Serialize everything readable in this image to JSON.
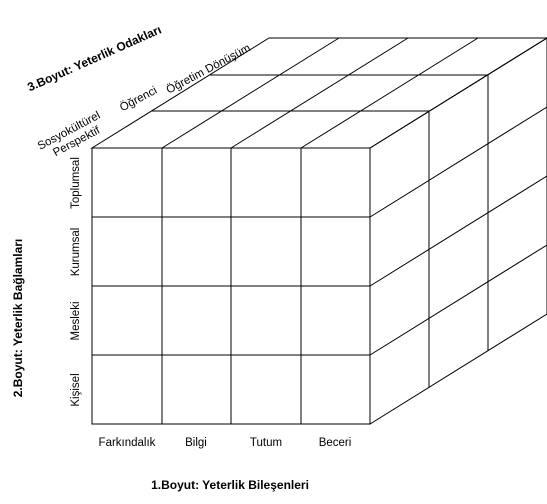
{
  "axes": {
    "x": {
      "title": "1.Boyut: Yeterlik Bileşenleri",
      "labels": [
        "Farkındalık",
        "Bilgi",
        "Tutum",
        "Beceri"
      ]
    },
    "y": {
      "title": "2.Boyut: Yeterlik Bağlamları",
      "labels": [
        "Toplumsal",
        "Kurumsal",
        "Mesleki",
        "Kişisel"
      ]
    },
    "z": {
      "title": "3.Boyut: Yeterlik Odakları",
      "labels": [
        {
          "lines": [
            "Sosyokültürel",
            "Perspektif"
          ]
        },
        {
          "lines": [
            "Öğrenci"
          ]
        },
        {
          "lines": [
            "Öğretim Dönüşüm"
          ]
        }
      ]
    }
  }
}
